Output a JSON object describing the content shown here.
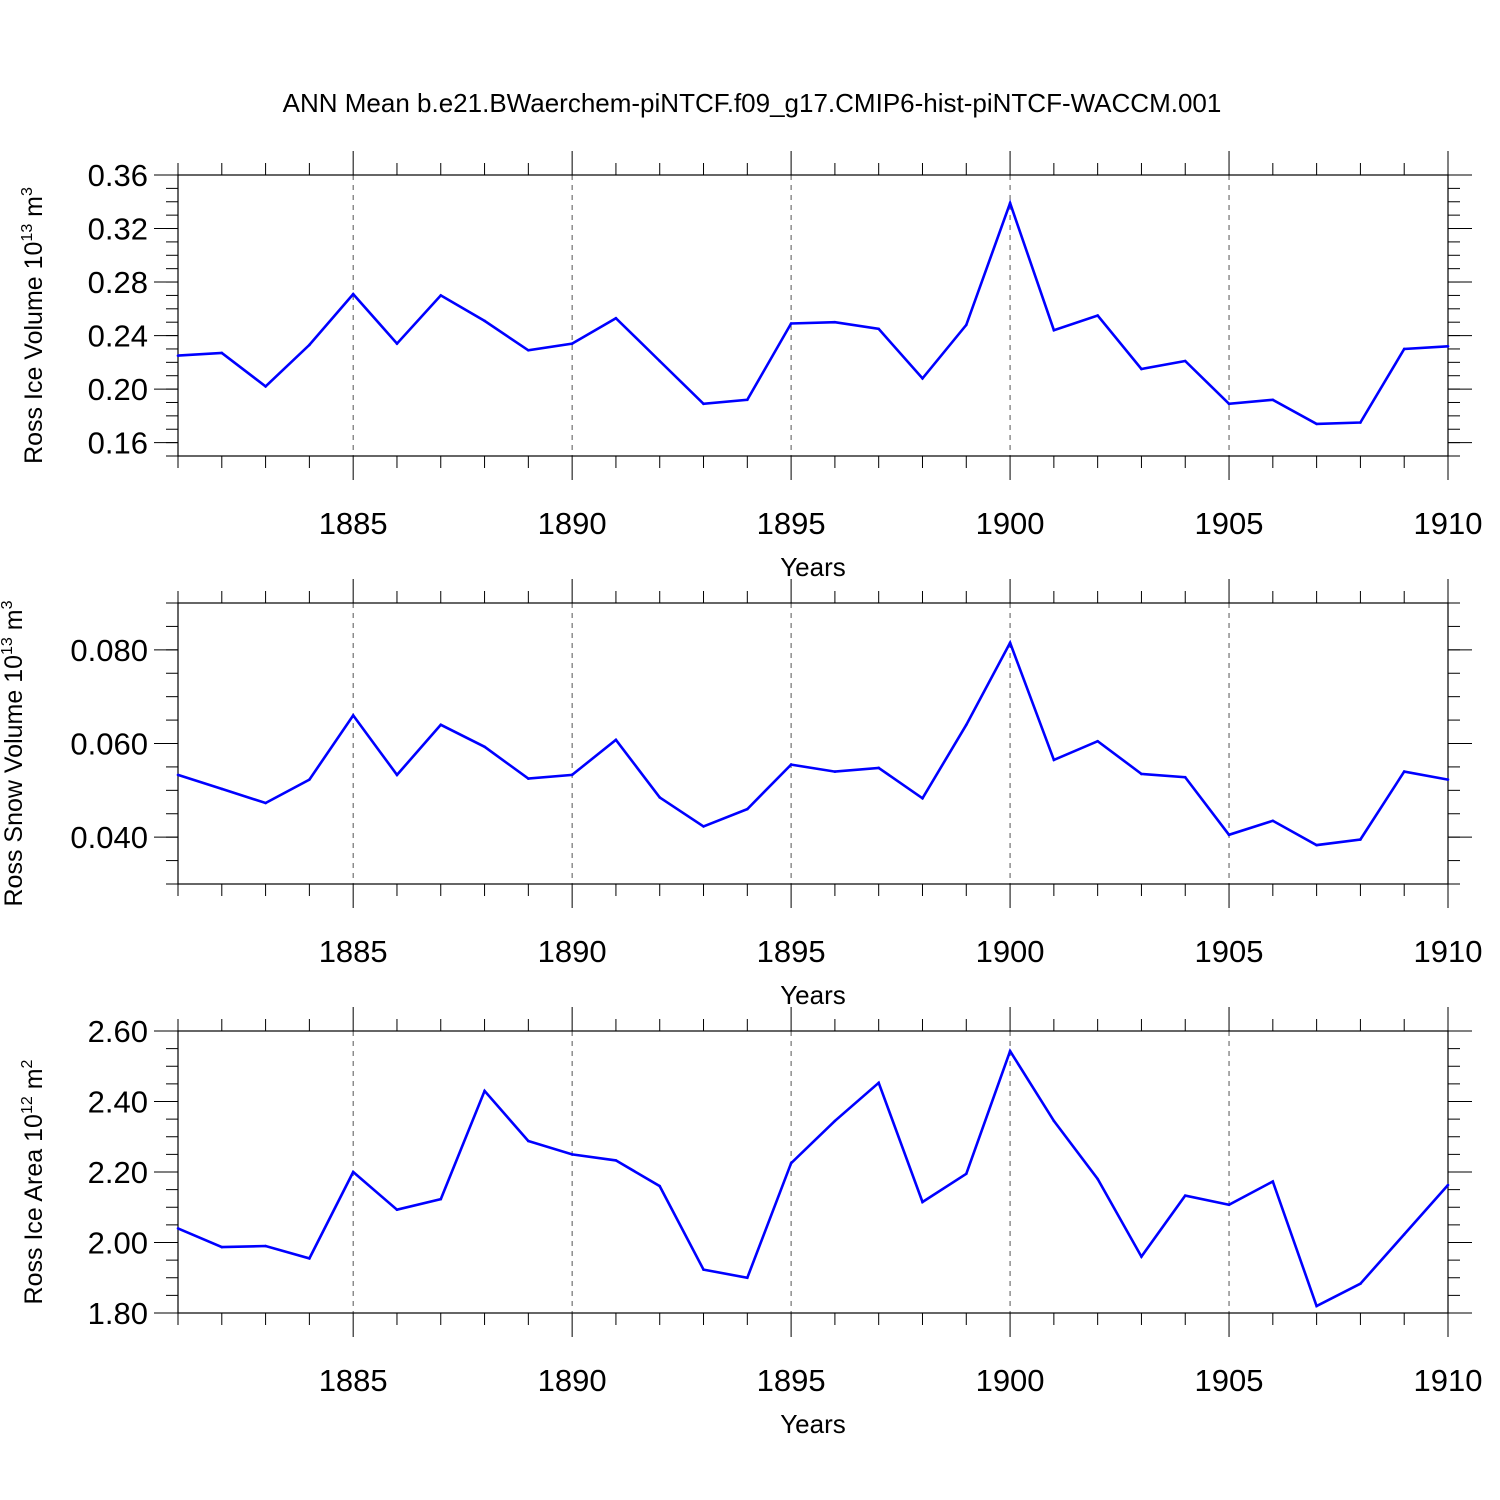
{
  "title": "ANN Mean b.e21.BWaerchem-piNTCF.f09_g17.CMIP6-hist-piNTCF-WACCM.001",
  "colors": {
    "line": "#0000ff",
    "axis": "#000000",
    "grid": "#555555"
  },
  "chart_data": [
    {
      "type": "line",
      "ylabel": {
        "text": "Ross Ice Volume 10",
        "sup": "13",
        "unit": " m",
        "unit_sup": "3"
      },
      "xlabel": "Years",
      "xlim": [
        1881,
        1910
      ],
      "ylim": [
        0.15,
        0.36
      ],
      "yticks": [
        0.16,
        0.2,
        0.24,
        0.28,
        0.32,
        0.36
      ],
      "ytick_labels": [
        "0.16",
        "0.20",
        "0.24",
        "0.28",
        "0.32",
        "0.36"
      ],
      "xticks": [
        1885,
        1890,
        1895,
        1900,
        1905,
        1910
      ],
      "xtick_labels": [
        "1885",
        "1890",
        "1895",
        "1900",
        "1905",
        "1910"
      ],
      "x": [
        1881,
        1882,
        1883,
        1884,
        1885,
        1886,
        1887,
        1888,
        1889,
        1890,
        1891,
        1892,
        1893,
        1894,
        1895,
        1896,
        1897,
        1898,
        1899,
        1900,
        1901,
        1902,
        1903,
        1904,
        1905,
        1906,
        1907,
        1908,
        1909,
        1910
      ],
      "values": [
        0.225,
        0.227,
        0.202,
        0.233,
        0.271,
        0.234,
        0.27,
        0.251,
        0.229,
        0.234,
        0.253,
        0.221,
        0.189,
        0.192,
        0.249,
        0.25,
        0.245,
        0.208,
        0.248,
        0.339,
        0.244,
        0.255,
        0.215,
        0.221,
        0.189,
        0.192,
        0.174,
        0.175,
        0.23,
        0.232
      ]
    },
    {
      "type": "line",
      "ylabel": {
        "text": "Ross Snow Volume 10",
        "sup": "13",
        "unit": " m",
        "unit_sup": "3"
      },
      "xlabel": "Years",
      "xlim": [
        1881,
        1910
      ],
      "ylim": [
        0.03,
        0.09
      ],
      "yticks": [
        0.04,
        0.06,
        0.08
      ],
      "ytick_labels": [
        "0.040",
        "0.060",
        "0.080"
      ],
      "xticks": [
        1885,
        1890,
        1895,
        1900,
        1905,
        1910
      ],
      "xtick_labels": [
        "1885",
        "1890",
        "1895",
        "1900",
        "1905",
        "1910"
      ],
      "x": [
        1881,
        1882,
        1883,
        1884,
        1885,
        1886,
        1887,
        1888,
        1889,
        1890,
        1891,
        1892,
        1893,
        1894,
        1895,
        1896,
        1897,
        1898,
        1899,
        1900,
        1901,
        1902,
        1903,
        1904,
        1905,
        1906,
        1907,
        1908,
        1909,
        1910
      ],
      "values": [
        0.0533,
        0.0503,
        0.0473,
        0.0523,
        0.066,
        0.0533,
        0.064,
        0.0593,
        0.0525,
        0.0533,
        0.0608,
        0.0485,
        0.0423,
        0.046,
        0.0555,
        0.054,
        0.0548,
        0.0483,
        0.064,
        0.0815,
        0.0565,
        0.0605,
        0.0535,
        0.0528,
        0.0405,
        0.0435,
        0.0383,
        0.0395,
        0.054,
        0.0523
      ]
    },
    {
      "type": "line",
      "ylabel": {
        "text": "Ross Ice Area 10",
        "sup": "12",
        "unit": " m",
        "unit_sup": "2"
      },
      "xlabel": "Years",
      "xlim": [
        1881,
        1910
      ],
      "ylim": [
        1.8,
        2.6
      ],
      "yticks": [
        1.8,
        2.0,
        2.2,
        2.4,
        2.6
      ],
      "ytick_labels": [
        "1.80",
        "2.00",
        "2.20",
        "2.40",
        "2.60"
      ],
      "xticks": [
        1885,
        1890,
        1895,
        1900,
        1905,
        1910
      ],
      "xtick_labels": [
        "1885",
        "1890",
        "1895",
        "1900",
        "1905",
        "1910"
      ],
      "x": [
        1881,
        1882,
        1883,
        1884,
        1885,
        1886,
        1887,
        1888,
        1889,
        1890,
        1891,
        1892,
        1893,
        1894,
        1895,
        1896,
        1897,
        1898,
        1899,
        1900,
        1901,
        1902,
        1903,
        1904,
        1905,
        1906,
        1907,
        1908,
        1909,
        1910
      ],
      "values": [
        2.04,
        1.987,
        1.99,
        1.955,
        2.2,
        2.093,
        2.123,
        2.43,
        2.288,
        2.25,
        2.233,
        2.16,
        1.923,
        1.9,
        2.225,
        2.345,
        2.453,
        2.115,
        2.195,
        2.543,
        2.345,
        2.18,
        1.96,
        2.133,
        2.107,
        2.173,
        1.82,
        1.883,
        2.023,
        2.163
      ]
    }
  ]
}
